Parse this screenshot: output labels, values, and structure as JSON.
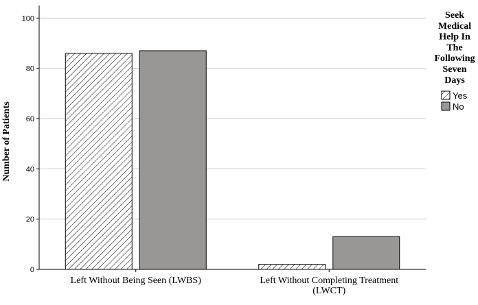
{
  "chart_data": {
    "type": "bar",
    "title": "",
    "xlabel": "",
    "ylabel": "Number of Patients",
    "categories": [
      "Left Without Being Seen (LWBS)",
      "Left Without Completing Treatment (LWCT)"
    ],
    "series": [
      {
        "name": "Yes",
        "values": [
          86,
          2
        ],
        "fill": "hatched"
      },
      {
        "name": "No",
        "values": [
          87,
          13
        ],
        "fill": "#999696"
      }
    ],
    "ylim": [
      0,
      105
    ],
    "yticks": [
      0,
      20,
      40,
      60,
      80,
      100
    ],
    "grid": true,
    "legend": {
      "title": "Seek Medical Help In The Following Seven Days",
      "placement": "top-right"
    }
  }
}
